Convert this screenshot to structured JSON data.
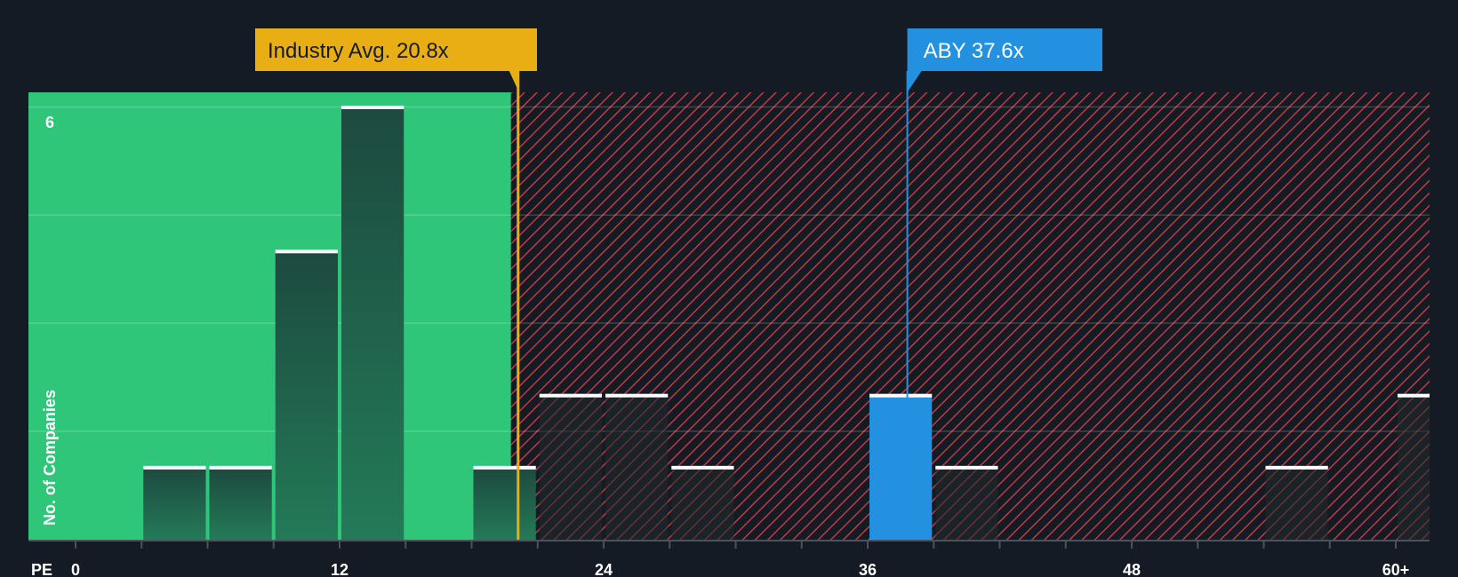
{
  "chart_data": {
    "type": "bar",
    "x_axis_label": "PE",
    "y_axis_label": "No. of Companies",
    "x_ticks": [
      "0",
      "12",
      "24",
      "36",
      "48",
      "60+"
    ],
    "x_tick_values": [
      0,
      12,
      24,
      36,
      48,
      60
    ],
    "y_tick_label": "6",
    "xlim": [
      0,
      61.5
    ],
    "ylim": [
      0,
      6.2
    ],
    "bin_width": 3,
    "bars": [
      {
        "x_start": 3,
        "value": 1
      },
      {
        "x_start": 6,
        "value": 1
      },
      {
        "x_start": 9,
        "value": 4
      },
      {
        "x_start": 12,
        "value": 6
      },
      {
        "x_start": 18,
        "value": 1
      },
      {
        "x_start": 21,
        "value": 2
      },
      {
        "x_start": 24,
        "value": 2
      },
      {
        "x_start": 27,
        "value": 1
      },
      {
        "x_start": 36,
        "value": 2,
        "highlight": true
      },
      {
        "x_start": 39,
        "value": 1
      },
      {
        "x_start": 54,
        "value": 1
      },
      {
        "x_start": 60,
        "value": 2
      }
    ],
    "fair_zone_end": 20.8,
    "industry_avg": {
      "label": "Industry Avg. 20.8x",
      "value": 20.8
    },
    "company": {
      "label": "ABY 37.6x",
      "value": 37.6
    },
    "colors": {
      "background": "#151b24",
      "fair_zone": "#2fc67a",
      "expensive_hatch": "#c03a3e",
      "bar_dark": "#1f4a3e",
      "bar_hatched": "#1e2a2c",
      "highlight": "#2391e0",
      "industry_avg": "#e8ae14",
      "bar_top": "#ffffff"
    }
  }
}
